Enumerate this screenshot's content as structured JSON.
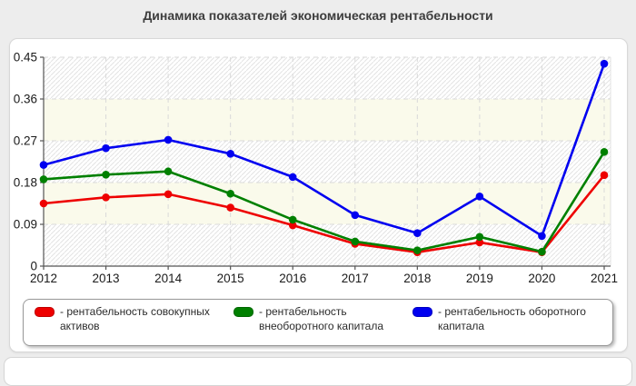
{
  "page": {
    "title": "Динамика показателей экономическая рентабельности"
  },
  "chart_data": {
    "type": "line",
    "title": "Динамика показателей экономическая рентабельности",
    "x_labels": [
      "2012",
      "2013",
      "2014",
      "2015",
      "2016",
      "2017",
      "2018",
      "2019",
      "2020",
      "2021"
    ],
    "y_ticks": [
      0,
      0.09,
      0.18,
      0.27,
      0.36,
      0.45
    ],
    "y_tick_labels": [
      "0",
      "0.09",
      "0.18",
      "0.27",
      "0.36",
      "0.45"
    ],
    "ylim": [
      0,
      0.45
    ],
    "grid": true,
    "grid_style": "dashed",
    "plot_background": "alternating diagonal-hatch and ivory horizontal bands",
    "legend_position": "bottom",
    "series": [
      {
        "name": "рентабельность совокупных активов",
        "legend_label": "- рентабельность совокупных\nактивов",
        "color": "#ee0000",
        "marker": "circle",
        "values": [
          0.135,
          0.148,
          0.155,
          0.126,
          0.088,
          0.048,
          0.03,
          0.051,
          0.03,
          0.196
        ]
      },
      {
        "name": "рентабельность внеоборотного капитала",
        "legend_label": "- рентабельность\nвнеоборотного капитала",
        "color": "#008000",
        "marker": "circle",
        "values": [
          0.187,
          0.197,
          0.204,
          0.156,
          0.1,
          0.053,
          0.034,
          0.063,
          0.031,
          0.246
        ]
      },
      {
        "name": "рентабельность оборотного капитала",
        "legend_label": "- рентабельность оборотного\nкапитала",
        "color": "#0000f0",
        "marker": "circle",
        "values": [
          0.218,
          0.254,
          0.272,
          0.242,
          0.192,
          0.11,
          0.071,
          0.15,
          0.065,
          0.436
        ]
      }
    ],
    "colors": {
      "page_background": "#ededed",
      "panel_background": "#ffffff",
      "band_ivory": "#fafaeb",
      "hatch_line": "#e3e3e3",
      "gridline": "#d9d9d9",
      "axis": "#555555",
      "tick_label": "#1a1a1a",
      "title_text": "#3d3d3d"
    }
  }
}
